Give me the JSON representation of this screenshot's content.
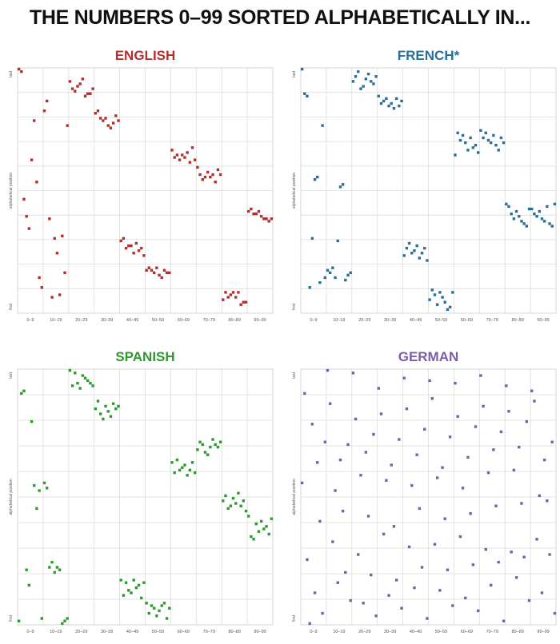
{
  "title": "THE NUMBERS 0–99 SORTED ALPHABETICALLY IN...",
  "chart_data": [
    {
      "type": "scatter",
      "title": "ENGLISH",
      "color": "#b03030",
      "xlabel": "",
      "ylabel": "alphabetical position",
      "y_tick_labels": {
        "top": "last",
        "bottom": "first"
      },
      "x_tick_labels": [
        "0–9",
        "10–19",
        "20–29",
        "30–39",
        "40–49",
        "50–59",
        "60–69",
        "70–79",
        "80–89",
        "90–99"
      ],
      "xlim": [
        0,
        99
      ],
      "ylim": [
        0,
        99
      ],
      "grid": true,
      "x": [
        0,
        1,
        2,
        3,
        4,
        5,
        6,
        7,
        8,
        9,
        10,
        11,
        12,
        13,
        14,
        15,
        16,
        17,
        18,
        19,
        20,
        21,
        22,
        23,
        24,
        25,
        26,
        27,
        28,
        29,
        30,
        31,
        32,
        33,
        34,
        35,
        36,
        37,
        38,
        39,
        40,
        41,
        42,
        43,
        44,
        45,
        46,
        47,
        48,
        49,
        50,
        51,
        52,
        53,
        54,
        55,
        56,
        57,
        58,
        59,
        60,
        61,
        62,
        63,
        64,
        65,
        66,
        67,
        68,
        69,
        70,
        71,
        72,
        73,
        74,
        75,
        76,
        77,
        78,
        79,
        80,
        81,
        82,
        83,
        84,
        85,
        86,
        87,
        88,
        89,
        90,
        91,
        92,
        93,
        94,
        95,
        96,
        97,
        98,
        99
      ],
      "y": [
        99,
        98,
        46,
        39,
        34,
        62,
        78,
        53,
        14,
        10,
        82,
        86,
        38,
        6,
        30,
        24,
        7,
        31,
        16,
        76,
        94,
        91,
        90,
        92,
        93,
        95,
        88,
        89,
        89,
        91,
        81,
        82,
        79,
        78,
        79,
        76,
        75,
        77,
        80,
        78,
        29,
        30,
        26,
        27,
        27,
        24,
        28,
        25,
        26,
        23,
        17,
        18,
        17,
        16,
        18,
        15,
        14,
        17,
        16,
        16,
        66,
        63,
        64,
        62,
        64,
        63,
        65,
        61,
        67,
        62,
        59,
        56,
        54,
        55,
        57,
        55,
        56,
        53,
        58,
        56,
        5,
        8,
        6,
        7,
        8,
        6,
        8,
        3,
        4,
        4,
        41,
        42,
        40,
        40,
        41,
        39,
        38,
        38,
        37,
        38
      ]
    },
    {
      "type": "scatter",
      "title": "FRENCH*",
      "color": "#2a6f97",
      "xlabel": "",
      "ylabel": "alphabetical position",
      "y_tick_labels": {
        "top": "last",
        "bottom": "first"
      },
      "x_tick_labels": [
        "0–9",
        "10–19",
        "20–29",
        "30–39",
        "40–49",
        "50–59",
        "60–69",
        "70–79",
        "80–89",
        "90–99"
      ],
      "xlim": [
        0,
        99
      ],
      "ylim": [
        0,
        99
      ],
      "grid": true,
      "x": [
        0,
        1,
        2,
        3,
        4,
        5,
        6,
        7,
        8,
        9,
        10,
        11,
        12,
        13,
        14,
        15,
        16,
        17,
        18,
        19,
        20,
        21,
        22,
        23,
        24,
        25,
        26,
        27,
        28,
        29,
        30,
        31,
        32,
        33,
        34,
        35,
        36,
        37,
        38,
        39,
        40,
        41,
        42,
        43,
        44,
        45,
        46,
        47,
        48,
        49,
        50,
        51,
        52,
        53,
        54,
        55,
        56,
        57,
        58,
        59,
        60,
        61,
        62,
        63,
        64,
        65,
        66,
        67,
        68,
        69,
        70,
        71,
        72,
        73,
        74,
        75,
        76,
        77,
        78,
        79,
        80,
        81,
        82,
        83,
        84,
        85,
        86,
        87,
        88,
        89,
        90,
        91,
        92,
        93,
        94,
        95,
        96,
        97,
        98,
        99
      ],
      "y": [
        99,
        89,
        88,
        10,
        30,
        54,
        55,
        12,
        76,
        14,
        17,
        16,
        18,
        14,
        29,
        51,
        52,
        13,
        15,
        16,
        94,
        96,
        98,
        91,
        92,
        95,
        97,
        94,
        93,
        96,
        88,
        85,
        86,
        87,
        84,
        85,
        83,
        87,
        84,
        86,
        23,
        26,
        28,
        24,
        25,
        27,
        22,
        24,
        26,
        21,
        5,
        9,
        7,
        3,
        8,
        6,
        4,
        1,
        2,
        8,
        64,
        73,
        70,
        72,
        69,
        66,
        71,
        67,
        68,
        65,
        74,
        71,
        73,
        70,
        69,
        72,
        68,
        66,
        71,
        69,
        44,
        43,
        40,
        38,
        41,
        39,
        37,
        36,
        35,
        42,
        42,
        40,
        39,
        41,
        38,
        37,
        43,
        36,
        35,
        44
      ]
    },
    {
      "type": "scatter",
      "title": "SPANISH",
      "color": "#2e9a2e",
      "xlabel": "",
      "ylabel": "alphabetical position",
      "y_tick_labels": {
        "top": "last",
        "bottom": "first"
      },
      "x_tick_labels": [
        "0–9",
        "10–19",
        "20–29",
        "30–39",
        "40–49",
        "50–59",
        "60–69",
        "70–79",
        "80–89",
        "90–99"
      ],
      "xlim": [
        0,
        99
      ],
      "ylim": [
        0,
        99
      ],
      "grid": true,
      "x": [
        0,
        1,
        2,
        3,
        4,
        5,
        6,
        7,
        8,
        9,
        10,
        11,
        12,
        13,
        14,
        15,
        16,
        17,
        18,
        19,
        20,
        21,
        22,
        23,
        24,
        25,
        26,
        27,
        28,
        29,
        30,
        31,
        32,
        33,
        34,
        35,
        36,
        37,
        38,
        39,
        40,
        41,
        42,
        43,
        44,
        45,
        46,
        47,
        48,
        49,
        50,
        51,
        52,
        53,
        54,
        55,
        56,
        57,
        58,
        59,
        60,
        61,
        62,
        63,
        64,
        65,
        66,
        67,
        68,
        69,
        70,
        71,
        72,
        73,
        74,
        75,
        76,
        77,
        78,
        79,
        80,
        81,
        82,
        83,
        84,
        85,
        86,
        87,
        88,
        89,
        90,
        91,
        92,
        93,
        94,
        95,
        96,
        97,
        98,
        99
      ],
      "y": [
        1,
        90,
        91,
        21,
        15,
        79,
        54,
        45,
        52,
        2,
        55,
        53,
        22,
        24,
        20,
        22,
        21,
        0,
        1,
        2,
        99,
        93,
        98,
        94,
        92,
        97,
        96,
        95,
        94,
        93,
        84,
        87,
        82,
        80,
        85,
        83,
        81,
        86,
        84,
        85,
        17,
        11,
        16,
        13,
        12,
        17,
        14,
        15,
        10,
        16,
        8,
        4,
        7,
        6,
        3,
        5,
        7,
        8,
        2,
        6,
        63,
        59,
        64,
        60,
        61,
        62,
        58,
        60,
        63,
        59,
        68,
        71,
        70,
        67,
        66,
        69,
        72,
        70,
        69,
        71,
        48,
        50,
        45,
        46,
        49,
        47,
        51,
        46,
        48,
        44,
        42,
        34,
        33,
        39,
        36,
        40,
        37,
        38,
        35,
        41
      ]
    },
    {
      "type": "scatter",
      "title": "GERMAN",
      "color": "#7b5ea7",
      "xlabel": "",
      "ylabel": "alphabetical position",
      "y_tick_labels": {
        "top": "last",
        "bottom": "first"
      },
      "x_tick_labels": [
        "0–9",
        "10–19",
        "20–29",
        "30–39",
        "40–49",
        "50–59",
        "60–69",
        "70–79",
        "80–89",
        "90–99"
      ],
      "xlim": [
        0,
        99
      ],
      "ylim": [
        0,
        99
      ],
      "grid": true,
      "x": [
        0,
        1,
        2,
        3,
        4,
        5,
        6,
        7,
        8,
        9,
        10,
        11,
        12,
        13,
        14,
        15,
        16,
        17,
        18,
        19,
        20,
        21,
        22,
        23,
        24,
        25,
        26,
        27,
        28,
        29,
        30,
        31,
        32,
        33,
        34,
        35,
        36,
        37,
        38,
        39,
        40,
        41,
        42,
        43,
        44,
        45,
        46,
        47,
        48,
        49,
        50,
        51,
        52,
        53,
        54,
        55,
        56,
        57,
        58,
        59,
        60,
        61,
        62,
        63,
        64,
        65,
        66,
        67,
        68,
        69,
        70,
        71,
        72,
        73,
        74,
        75,
        76,
        77,
        78,
        79,
        80,
        81,
        82,
        83,
        84,
        85,
        86,
        87,
        88,
        89,
        90,
        91,
        92,
        93,
        94,
        95,
        96,
        97,
        98,
        99
      ],
      "y": [
        55,
        90,
        25,
        0,
        78,
        12,
        63,
        40,
        4,
        71,
        99,
        86,
        32,
        52,
        16,
        64,
        44,
        20,
        70,
        9,
        98,
        80,
        27,
        58,
        8,
        67,
        42,
        19,
        74,
        3,
        92,
        82,
        35,
        56,
        11,
        62,
        38,
        17,
        72,
        6,
        96,
        84,
        30,
        54,
        14,
        66,
        45,
        22,
        76,
        2,
        95,
        88,
        31,
        57,
        13,
        61,
        41,
        21,
        73,
        7,
        94,
        81,
        34,
        53,
        10,
        65,
        43,
        23,
        77,
        5,
        97,
        85,
        29,
        59,
        15,
        68,
        46,
        24,
        75,
        1,
        93,
        83,
        28,
        60,
        18,
        69,
        47,
        26,
        79,
        9,
        91,
        87,
        33,
        50,
        12,
        64,
        48,
        27,
        71,
        4
      ]
    }
  ]
}
